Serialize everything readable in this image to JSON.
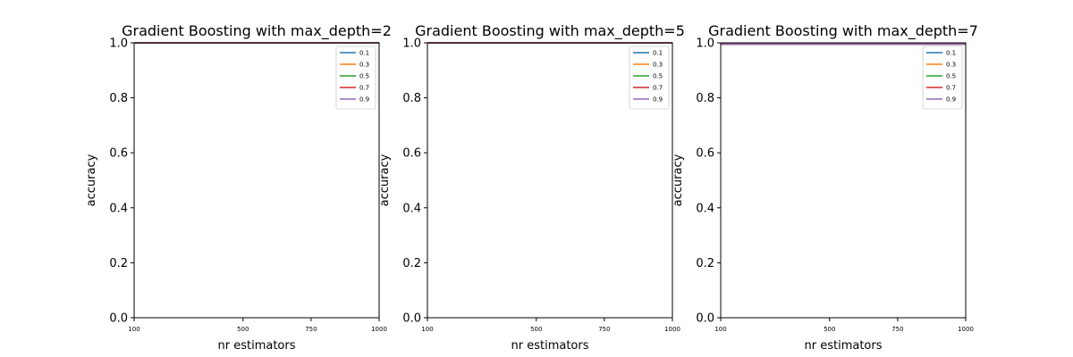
{
  "chart_data": [
    {
      "type": "line",
      "title": "Gradient Boosting with max_depth=2",
      "xlabel": "nr estimators",
      "ylabel": "accuracy",
      "xlim": [
        100,
        1000
      ],
      "ylim": [
        0,
        1
      ],
      "xticks": [
        100,
        500,
        750,
        1000
      ],
      "yticks": [
        0.0,
        0.2,
        0.4,
        0.6,
        0.8,
        1.0
      ],
      "grid": false,
      "legend_position": "top-right",
      "series": [
        {
          "name": "0.1",
          "color": "#1f77b4",
          "x": [
            100,
            500,
            750,
            1000
          ],
          "y": [
            1.0,
            1.0,
            1.0,
            1.0
          ]
        },
        {
          "name": "0.3",
          "color": "#ff7f0e",
          "x": [
            100,
            500,
            750,
            1000
          ],
          "y": [
            1.0,
            1.0,
            1.0,
            1.0
          ]
        },
        {
          "name": "0.5",
          "color": "#2ca02c",
          "x": [
            100,
            500,
            750,
            1000
          ],
          "y": [
            1.0,
            1.0,
            1.0,
            1.0
          ]
        },
        {
          "name": "0.7",
          "color": "#d62728",
          "x": [
            100,
            500,
            750,
            1000
          ],
          "y": [
            1.0,
            1.0,
            1.0,
            1.0
          ]
        },
        {
          "name": "0.9",
          "color": "#9467bd",
          "x": [
            100,
            500,
            750,
            1000
          ],
          "y": [
            1.0,
            1.0,
            1.0,
            1.0
          ]
        }
      ]
    },
    {
      "type": "line",
      "title": "Gradient Boosting with max_depth=5",
      "xlabel": "nr estimators",
      "ylabel": "accuracy",
      "xlim": [
        100,
        1000
      ],
      "ylim": [
        0,
        1
      ],
      "xticks": [
        100,
        500,
        750,
        1000
      ],
      "yticks": [
        0.0,
        0.2,
        0.4,
        0.6,
        0.8,
        1.0
      ],
      "grid": false,
      "legend_position": "top-right",
      "series": [
        {
          "name": "0.1",
          "color": "#1f77b4",
          "x": [
            100,
            500,
            750,
            1000
          ],
          "y": [
            1.0,
            1.0,
            1.0,
            1.0
          ]
        },
        {
          "name": "0.3",
          "color": "#ff7f0e",
          "x": [
            100,
            500,
            750,
            1000
          ],
          "y": [
            1.0,
            1.0,
            1.0,
            1.0
          ]
        },
        {
          "name": "0.5",
          "color": "#2ca02c",
          "x": [
            100,
            500,
            750,
            1000
          ],
          "y": [
            1.0,
            1.0,
            1.0,
            1.0
          ]
        },
        {
          "name": "0.7",
          "color": "#d62728",
          "x": [
            100,
            500,
            750,
            1000
          ],
          "y": [
            1.0,
            1.0,
            1.0,
            1.0
          ]
        },
        {
          "name": "0.9",
          "color": "#9467bd",
          "x": [
            100,
            500,
            750,
            1000
          ],
          "y": [
            1.0,
            1.0,
            1.0,
            1.0
          ]
        }
      ]
    },
    {
      "type": "line",
      "title": "Gradient Boosting with max_depth=7",
      "xlabel": "nr estimators",
      "ylabel": "accuracy",
      "xlim": [
        100,
        1000
      ],
      "ylim": [
        0,
        1
      ],
      "xticks": [
        100,
        500,
        750,
        1000
      ],
      "yticks": [
        0.0,
        0.2,
        0.4,
        0.6,
        0.8,
        1.0
      ],
      "grid": false,
      "legend_position": "top-right",
      "series": [
        {
          "name": "0.1",
          "color": "#1f77b4",
          "x": [
            100,
            500,
            750,
            1000
          ],
          "y": [
            0.995,
            0.995,
            0.995,
            0.995
          ]
        },
        {
          "name": "0.3",
          "color": "#ff7f0e",
          "x": [
            100,
            500,
            750,
            1000
          ],
          "y": [
            0.995,
            0.995,
            0.995,
            0.995
          ]
        },
        {
          "name": "0.5",
          "color": "#2ca02c",
          "x": [
            100,
            500,
            750,
            1000
          ],
          "y": [
            0.995,
            0.995,
            0.995,
            0.995
          ]
        },
        {
          "name": "0.7",
          "color": "#d62728",
          "x": [
            100,
            500,
            750,
            1000
          ],
          "y": [
            0.995,
            0.995,
            0.995,
            0.995
          ]
        },
        {
          "name": "0.9",
          "color": "#9467bd",
          "x": [
            100,
            500,
            750,
            1000
          ],
          "y": [
            0.995,
            0.995,
            0.995,
            0.995
          ]
        }
      ]
    }
  ]
}
